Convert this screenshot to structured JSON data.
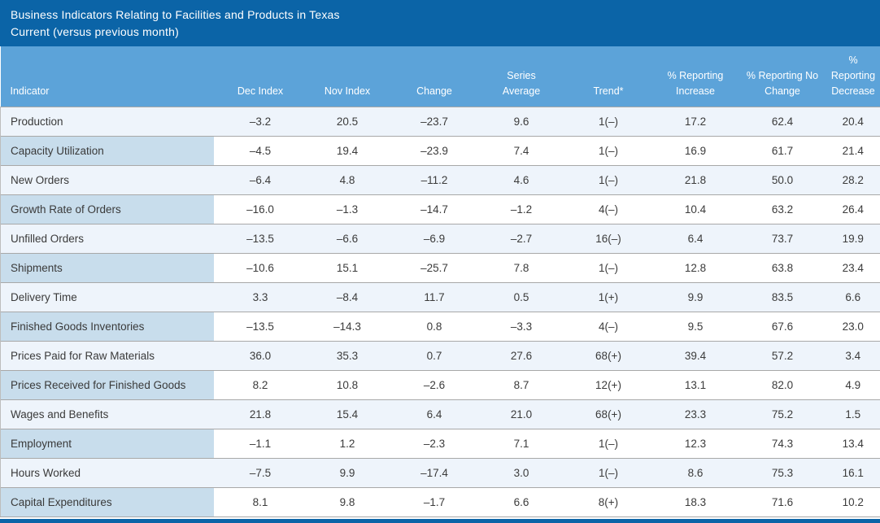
{
  "title": {
    "line1": "Business Indicators Relating to Facilities and Products in Texas",
    "line2": "Current (versus previous month)"
  },
  "colors": {
    "title_bar": "#0b64a7",
    "header_band": "#5ca3d9",
    "indicator_column": "#c8ddec",
    "alt_row": "#eef4fb",
    "white_row": "#ffffff",
    "row_line": "#a8a8a8",
    "bottom_bar": "#0b64a7",
    "header_text": "#ffffff",
    "body_text": "#3b3b3b"
  },
  "chart_data": {
    "type": "table",
    "title": "Business Indicators Relating to Facilities and Products in Texas",
    "subtitle": "Current (versus previous month)",
    "columns": [
      "Indicator",
      "Dec Index",
      "Nov Index",
      "Change",
      "Series\nAverage",
      "Trend*",
      "% Reporting\nIncrease",
      "% Reporting No\nChange",
      "%\nReporting\nDecrease"
    ],
    "rows": [
      [
        "Production",
        "–3.2",
        "20.5",
        "–23.7",
        "9.6",
        "1(–)",
        "17.2",
        "62.4",
        "20.4"
      ],
      [
        "Capacity Utilization",
        "–4.5",
        "19.4",
        "–23.9",
        "7.4",
        "1(–)",
        "16.9",
        "61.7",
        "21.4"
      ],
      [
        "New Orders",
        "–6.4",
        "4.8",
        "–11.2",
        "4.6",
        "1(–)",
        "21.8",
        "50.0",
        "28.2"
      ],
      [
        "Growth Rate of Orders",
        "–16.0",
        "–1.3",
        "–14.7",
        "–1.2",
        "4(–)",
        "10.4",
        "63.2",
        "26.4"
      ],
      [
        "Unfilled Orders",
        "–13.5",
        "–6.6",
        "–6.9",
        "–2.7",
        "16(–)",
        "6.4",
        "73.7",
        "19.9"
      ],
      [
        "Shipments",
        "–10.6",
        "15.1",
        "–25.7",
        "7.8",
        "1(–)",
        "12.8",
        "63.8",
        "23.4"
      ],
      [
        "Delivery Time",
        "3.3",
        "–8.4",
        "11.7",
        "0.5",
        "1(+)",
        "9.9",
        "83.5",
        "6.6"
      ],
      [
        "Finished Goods Inventories",
        "–13.5",
        "–14.3",
        "0.8",
        "–3.3",
        "4(–)",
        "9.5",
        "67.6",
        "23.0"
      ],
      [
        "Prices Paid for Raw Materials",
        "36.0",
        "35.3",
        "0.7",
        "27.6",
        "68(+)",
        "39.4",
        "57.2",
        "3.4"
      ],
      [
        "Prices Received for Finished Goods",
        "8.2",
        "10.8",
        "–2.6",
        "8.7",
        "12(+)",
        "13.1",
        "82.0",
        "4.9"
      ],
      [
        "Wages and Benefits",
        "21.8",
        "15.4",
        "6.4",
        "21.0",
        "68(+)",
        "23.3",
        "75.2",
        "1.5"
      ],
      [
        "Employment",
        "–1.1",
        "1.2",
        "–2.3",
        "7.1",
        "1(–)",
        "12.3",
        "74.3",
        "13.4"
      ],
      [
        "Hours Worked",
        "–7.5",
        "9.9",
        "–17.4",
        "3.0",
        "1(–)",
        "8.6",
        "75.3",
        "16.1"
      ],
      [
        "Capital Expenditures",
        "8.1",
        "9.8",
        "–1.7",
        "6.6",
        "8(+)",
        "18.3",
        "71.6",
        "10.2"
      ]
    ]
  }
}
